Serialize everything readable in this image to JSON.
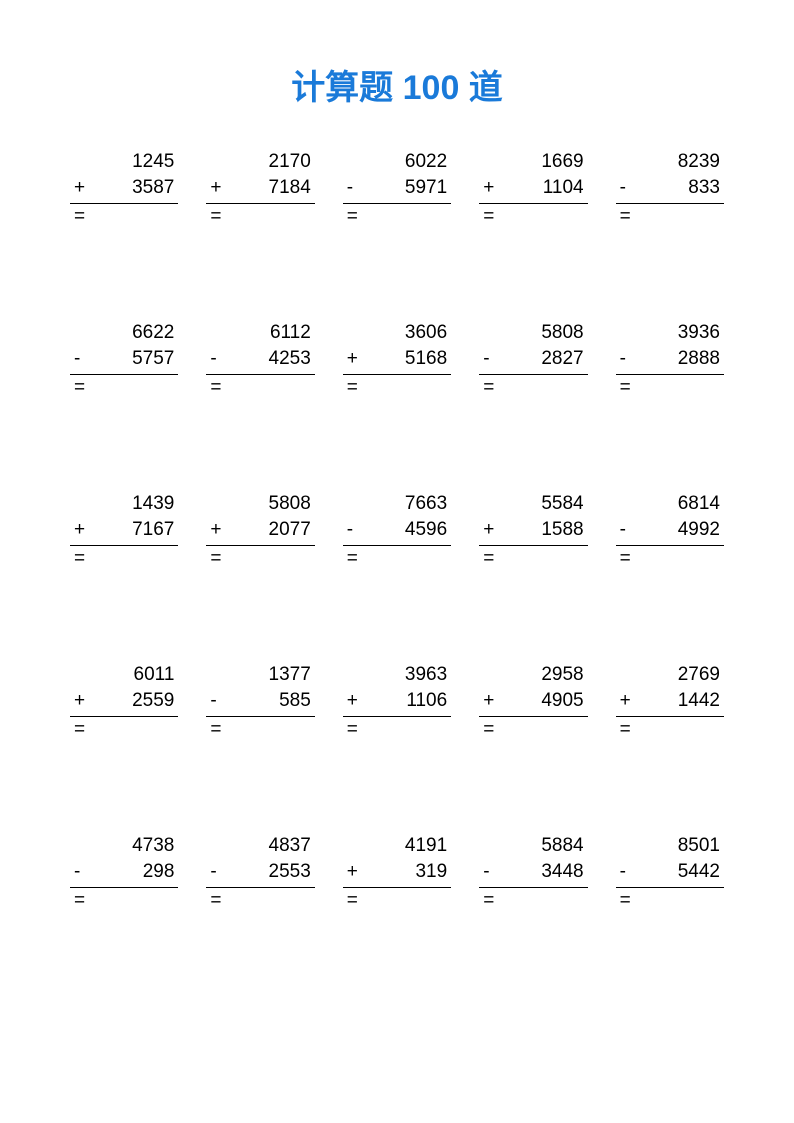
{
  "title": "计算题 100 道",
  "title_color": "#1a7ad9",
  "text_color": "#000000",
  "background_color": "#ffffff",
  "font_size_title": 34,
  "font_size_body": 19,
  "equals_symbol": "=",
  "grid": {
    "cols": 5,
    "rows": 5,
    "col_gap": 28,
    "row_gap": 90
  },
  "rule_color": "#000000",
  "problems": [
    {
      "a": "1245",
      "b": "3587",
      "op": "+"
    },
    {
      "a": "2170",
      "b": "7184",
      "op": "+"
    },
    {
      "a": "6022",
      "b": "5971",
      "op": "-"
    },
    {
      "a": "1669",
      "b": "1104",
      "op": "+"
    },
    {
      "a": "8239",
      "b": "833",
      "op": "-"
    },
    {
      "a": "6622",
      "b": "5757",
      "op": "-"
    },
    {
      "a": "6112",
      "b": "4253",
      "op": "-"
    },
    {
      "a": "3606",
      "b": "5168",
      "op": "+"
    },
    {
      "a": "5808",
      "b": "2827",
      "op": "-"
    },
    {
      "a": "3936",
      "b": "2888",
      "op": "-"
    },
    {
      "a": "1439",
      "b": "7167",
      "op": "+"
    },
    {
      "a": "5808",
      "b": "2077",
      "op": "+"
    },
    {
      "a": "7663",
      "b": "4596",
      "op": "-"
    },
    {
      "a": "5584",
      "b": "1588",
      "op": "+"
    },
    {
      "a": "6814",
      "b": "4992",
      "op": "-"
    },
    {
      "a": "6011",
      "b": "2559",
      "op": "+"
    },
    {
      "a": "1377",
      "b": "585",
      "op": "-"
    },
    {
      "a": "3963",
      "b": "1106",
      "op": "+"
    },
    {
      "a": "2958",
      "b": "4905",
      "op": "+"
    },
    {
      "a": "2769",
      "b": "1442",
      "op": "+"
    },
    {
      "a": "4738",
      "b": "298",
      "op": "-"
    },
    {
      "a": "4837",
      "b": "2553",
      "op": "-"
    },
    {
      "a": "4191",
      "b": "319",
      "op": "+"
    },
    {
      "a": "5884",
      "b": "3448",
      "op": "-"
    },
    {
      "a": "8501",
      "b": "5442",
      "op": "-"
    }
  ]
}
